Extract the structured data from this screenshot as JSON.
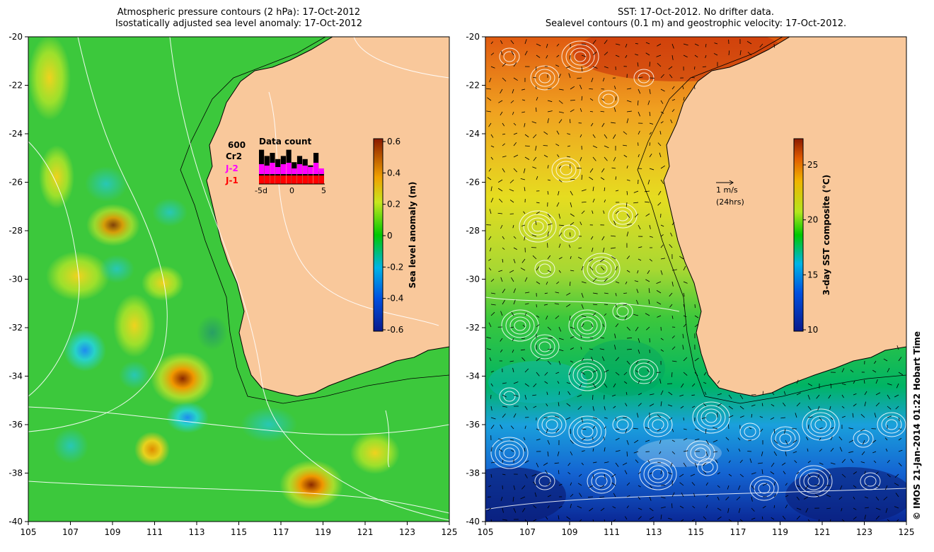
{
  "left_panel": {
    "title_line1": "Atmospheric pressure contours (2 hPa): 17-Oct-2012",
    "title_line2": "Isostatically adjusted sea level anomaly: 17-Oct-2012",
    "colorbar_label": "Sea level anomaly (m)",
    "colorbar_ticks": [
      "0.6",
      "0.4",
      "0.2",
      "0",
      "-0.2",
      "-0.4",
      "-0.6"
    ],
    "inset": {
      "title": "Data count",
      "count_label": "600",
      "legend": [
        {
          "name": "Cr2",
          "color": "#000000"
        },
        {
          "name": "J-2",
          "color": "#ff00ff"
        },
        {
          "name": "J-1",
          "color": "#ff0000"
        }
      ],
      "x_ticks": [
        "-5d",
        "0",
        "5"
      ]
    }
  },
  "right_panel": {
    "title_line1": "SST: 17-Oct-2012. No drifter data.",
    "title_line2": "Sealevel contours (0.1 m) and geostrophic velocity: 17-Oct-2012.",
    "colorbar_label": "3-day SST composite (°C)",
    "colorbar_ticks": [
      "25",
      "20",
      "15",
      "10"
    ],
    "velocity_scale_label": "1 m/s",
    "velocity_scale_sublabel": "(24hrs)"
  },
  "axes": {
    "x_ticks": [
      "105",
      "107",
      "109",
      "111",
      "113",
      "115",
      "117",
      "119",
      "121",
      "123",
      "125"
    ],
    "y_ticks": [
      "-20",
      "-22",
      "-24",
      "-26",
      "-28",
      "-30",
      "-32",
      "-34",
      "-36",
      "-38",
      "-40"
    ],
    "lon_range": [
      105,
      125
    ],
    "lat_range": [
      -40,
      -20
    ]
  },
  "credit": "© IMOS 21-Jan-2014 01:22 Hobart Time",
  "colors": {
    "land": "#f9c89b",
    "sla_low": "#0a1a8c",
    "sla_mid": "#00c800",
    "sla_high": "#8b1a00",
    "sst_cold": "#0a1a8c",
    "sst_warm": "#b01a00"
  }
}
